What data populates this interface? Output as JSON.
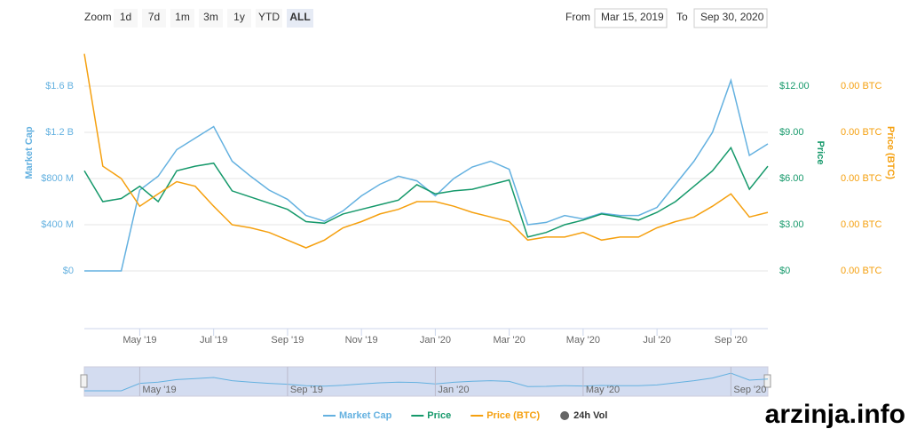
{
  "range_selector": {
    "zoom_label": "Zoom",
    "buttons": [
      "1d",
      "7d",
      "1m",
      "3m",
      "1y",
      "YTD",
      "ALL"
    ],
    "active": "ALL",
    "from_label": "From",
    "from": "Mar 15, 2019",
    "to_label": "To",
    "to": "Sep 30, 2020"
  },
  "watermark": "arzinja.info",
  "hidden_series": [
    {
      "name": "24h Vol",
      "color": "#666666"
    }
  ],
  "chart_data": {
    "type": "line",
    "categories": [
      null,
      null,
      null,
      "May '19",
      null,
      null,
      null,
      "Jul '19",
      null,
      null,
      null,
      "Sep '19",
      null,
      null,
      null,
      "Nov '19",
      null,
      null,
      null,
      "Jan '20",
      null,
      null,
      null,
      "Mar '20",
      null,
      null,
      null,
      "May '20",
      null,
      null,
      null,
      "Jul '20",
      null,
      null,
      null,
      "Sep '20",
      null,
      null
    ],
    "y_label": "Market Cap",
    "y2_label": "Price",
    "y3_label": "Price (BTC)",
    "ylim": [
      -500000000,
      2000000000
    ],
    "yticks": [
      {
        "value": 0,
        "label": "$0"
      },
      {
        "value": 400000000,
        "label": "$400 M"
      },
      {
        "value": 800000000,
        "label": "$800 M"
      },
      {
        "value": 1200000000,
        "label": "$1.2 B"
      },
      {
        "value": 1600000000,
        "label": "$1.6 B"
      }
    ],
    "y2lim": [
      -3.75,
      15
    ],
    "y2ticks": [
      {
        "value": 0,
        "label": "$0"
      },
      {
        "value": 3,
        "label": "$3.00"
      },
      {
        "value": 6,
        "label": "$6.00"
      },
      {
        "value": 9,
        "label": "$9.00"
      },
      {
        "value": 12,
        "label": "$12.00"
      }
    ],
    "y3lim": [
      -0.000375,
      0.0015
    ],
    "y3ticks": [
      {
        "value": 0,
        "label": "0.00 BTC"
      },
      {
        "value": 0.0003,
        "label": "0.00 BTC"
      },
      {
        "value": 0.0006,
        "label": "0.00 BTC"
      },
      {
        "value": 0.0009,
        "label": "0.00 BTC"
      },
      {
        "value": 0.0012,
        "label": "0.00 BTC"
      }
    ],
    "grid": true,
    "series": [
      {
        "name": "Market Cap",
        "color": "#64b1e0",
        "axis": "y",
        "values": [
          0,
          0,
          0,
          700000000,
          820000000,
          1050000000,
          1150000000,
          1250000000,
          950000000,
          820000000,
          700000000,
          620000000,
          480000000,
          430000000,
          520000000,
          650000000,
          750000000,
          820000000,
          780000000,
          650000000,
          800000000,
          900000000,
          950000000,
          880000000,
          400000000,
          420000000,
          480000000,
          450000000,
          500000000,
          480000000,
          480000000,
          550000000,
          750000000,
          950000000,
          1200000000,
          1650000000,
          1000000000,
          1100000000
        ]
      },
      {
        "name": "Price",
        "color": "#16996b",
        "axis": "y2",
        "values": [
          6.5,
          4.5,
          4.7,
          5.5,
          4.5,
          6.5,
          6.8,
          7.0,
          5.2,
          4.8,
          4.4,
          4.0,
          3.2,
          3.1,
          3.7,
          4.0,
          4.3,
          4.6,
          5.6,
          5.0,
          5.2,
          5.3,
          5.6,
          5.9,
          2.2,
          2.5,
          3.0,
          3.3,
          3.7,
          3.5,
          3.3,
          3.8,
          4.5,
          5.5,
          6.5,
          8.0,
          5.3,
          6.8
        ]
      },
      {
        "name": "Price (BTC)",
        "color": "#f5a00f",
        "axis": "y3",
        "values": [
          0.00141,
          0.00068,
          0.0006,
          0.00042,
          0.0005,
          0.00058,
          0.00055,
          0.00042,
          0.0003,
          0.00028,
          0.00025,
          0.0002,
          0.00015,
          0.0002,
          0.00028,
          0.00032,
          0.00037,
          0.0004,
          0.00045,
          0.00045,
          0.00042,
          0.00038,
          0.00035,
          0.00032,
          0.0002,
          0.00022,
          0.00022,
          0.00025,
          0.0002,
          0.00022,
          0.00022,
          0.00028,
          0.00032,
          0.00035,
          0.00042,
          0.0005,
          0.00035,
          0.00038
        ]
      }
    ]
  }
}
